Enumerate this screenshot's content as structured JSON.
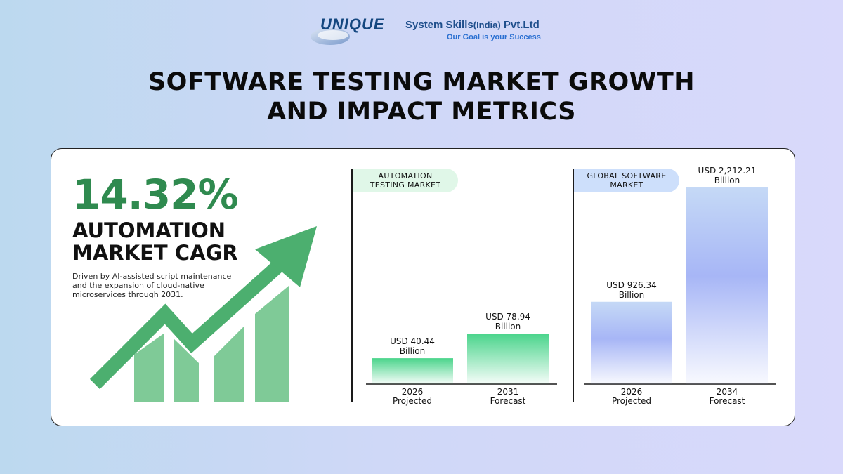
{
  "logo": {
    "brand": "UNIQUE",
    "company": "System Skills",
    "region": "(India)",
    "suffix": " Pvt.Ltd",
    "tagline": "Our Goal is your Success"
  },
  "title_line1": "SOFTWARE TESTING MARKET GROWTH",
  "title_line2": "AND IMPACT METRICS",
  "highlight": {
    "value": "14.32%",
    "label_line1": "AUTOMATION",
    "label_line2": "MARKET CAGR",
    "description": "Driven by AI-assisted script maintenance and the expansion of cloud-native microservices through 2031."
  },
  "colors": {
    "green_dark": "#2f8a4f",
    "green_bar": "#4ad48b",
    "graphic_green": "#4caf6f",
    "blue_bar": "#a7b6f6"
  },
  "chart_data": [
    {
      "type": "bar",
      "title_line1": "AUTOMATION",
      "title_line2": "TESTING MARKET",
      "unit": "USD Billion",
      "bars": [
        {
          "value": 40.44,
          "label_line1": "USD 40.44",
          "label_line2": "Billion",
          "x_line1": "2026",
          "x_line2": "Projected"
        },
        {
          "value": 78.94,
          "label_line1": "USD 78.94",
          "label_line2": "Billion",
          "x_line1": "2031",
          "x_line2": "Forecast"
        }
      ]
    },
    {
      "type": "bar",
      "title_line1": "GLOBAL SOFTWARE",
      "title_line2": "MARKET",
      "unit": "USD Billion",
      "bars": [
        {
          "value": 926.34,
          "label_line1": "USD 926.34",
          "label_line2": "Billion",
          "x_line1": "2026",
          "x_line2": "Projected"
        },
        {
          "value": 2212.21,
          "label_line1": "USD 2,212.21",
          "label_line2": "Billion",
          "x_line1": "2034",
          "x_line2": "Forecast"
        }
      ]
    }
  ]
}
